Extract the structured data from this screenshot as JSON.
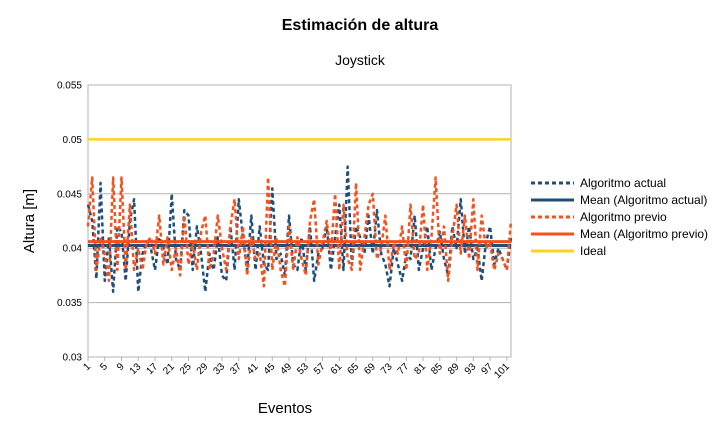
{
  "chart_data": {
    "type": "line",
    "title": "Estimación de altura",
    "subtitle": "Joystick",
    "xlabel": "Eventos",
    "ylabel": "Altura [m]",
    "ylim": [
      0.03,
      0.055
    ],
    "y_ticks": [
      "0.055",
      "0.05",
      "0.045",
      "0.04",
      "0.035",
      "0.03"
    ],
    "x_range": [
      1,
      102
    ],
    "x_ticks": [
      "1",
      "5",
      "9",
      "13",
      "17",
      "21",
      "25",
      "29",
      "33",
      "37",
      "41",
      "45",
      "49",
      "53",
      "57",
      "61",
      "65",
      "69",
      "73",
      "77",
      "81",
      "85",
      "89",
      "93",
      "97",
      "101"
    ],
    "grid": true,
    "legend_position": "right",
    "series": [
      {
        "name": "Algoritmo actual",
        "color": "#1F4E79",
        "style": "dashed",
        "values": [
          0.044,
          0.0425,
          0.0372,
          0.046,
          0.037,
          0.041,
          0.036,
          0.042,
          0.0415,
          0.037,
          0.0425,
          0.0445,
          0.036,
          0.0395,
          0.0405,
          0.04,
          0.038,
          0.041,
          0.04,
          0.0385,
          0.045,
          0.039,
          0.038,
          0.0435,
          0.043,
          0.038,
          0.042,
          0.0395,
          0.036,
          0.0395,
          0.038,
          0.041,
          0.0375,
          0.037,
          0.042,
          0.038,
          0.0445,
          0.041,
          0.038,
          0.043,
          0.038,
          0.042,
          0.0385,
          0.038,
          0.0455,
          0.039,
          0.0395,
          0.0375,
          0.043,
          0.0385,
          0.038,
          0.041,
          0.038,
          0.042,
          0.037,
          0.0395,
          0.04,
          0.042,
          0.038,
          0.041,
          0.044,
          0.038,
          0.0475,
          0.0385,
          0.042,
          0.041,
          0.0395,
          0.043,
          0.0395,
          0.0435,
          0.0395,
          0.0385,
          0.0365,
          0.04,
          0.0385,
          0.037,
          0.0395,
          0.039,
          0.043,
          0.038,
          0.04,
          0.042,
          0.038,
          0.04,
          0.0415,
          0.039,
          0.0375,
          0.042,
          0.04,
          0.0445,
          0.0395,
          0.042,
          0.039,
          0.04,
          0.037,
          0.0405,
          0.042,
          0.0385,
          0.04,
          0.039,
          0.038,
          0.041
        ]
      },
      {
        "name": "Mean (Algoritmo actual)",
        "color": "#1F4E79",
        "style": "solid",
        "values": [
          0.04025
        ]
      },
      {
        "name": "Algoritmo previo",
        "color": "#F4511E",
        "style": "dashed",
        "values": [
          0.042,
          0.0465,
          0.038,
          0.041,
          0.0395,
          0.037,
          0.0465,
          0.038,
          0.0465,
          0.038,
          0.044,
          0.038,
          0.04,
          0.038,
          0.0405,
          0.041,
          0.0395,
          0.043,
          0.0385,
          0.041,
          0.038,
          0.04,
          0.0375,
          0.043,
          0.0385,
          0.0405,
          0.038,
          0.0415,
          0.043,
          0.038,
          0.0395,
          0.043,
          0.04,
          0.038,
          0.042,
          0.0445,
          0.039,
          0.042,
          0.0375,
          0.041,
          0.039,
          0.0395,
          0.0365,
          0.0465,
          0.038,
          0.041,
          0.038,
          0.0365,
          0.042,
          0.038,
          0.041,
          0.039,
          0.0375,
          0.0425,
          0.0445,
          0.0385,
          0.0405,
          0.0425,
          0.0395,
          0.045,
          0.038,
          0.044,
          0.039,
          0.038,
          0.046,
          0.038,
          0.041,
          0.044,
          0.045,
          0.039,
          0.04,
          0.043,
          0.038,
          0.0405,
          0.0395,
          0.042,
          0.038,
          0.044,
          0.039,
          0.0395,
          0.044,
          0.038,
          0.041,
          0.0465,
          0.0395,
          0.042,
          0.037,
          0.041,
          0.044,
          0.0395,
          0.043,
          0.039,
          0.0445,
          0.038,
          0.043,
          0.04,
          0.0405,
          0.038,
          0.0395,
          0.039,
          0.038,
          0.0425
        ]
      },
      {
        "name": "Mean (Algoritmo previo)",
        "color": "#F4511E",
        "style": "solid",
        "values": [
          0.0406
        ]
      },
      {
        "name": "Ideal",
        "color": "#FFD320",
        "style": "solid",
        "values": [
          0.05
        ]
      }
    ]
  }
}
